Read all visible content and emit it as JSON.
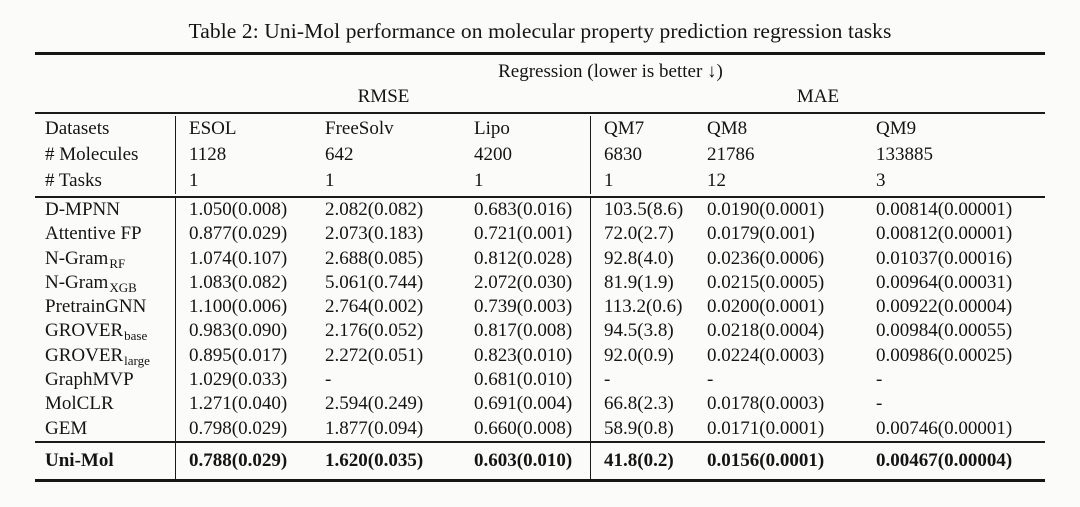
{
  "title": "Table 2: Uni-Mol performance on molecular property prediction regression tasks",
  "header": {
    "group_label": "Regression (lower is better ↓)",
    "metric_groups": [
      "RMSE",
      "MAE"
    ]
  },
  "datasets_header": {
    "row_labels": [
      "Datasets",
      "# Molecules",
      "# Tasks"
    ],
    "columns": [
      {
        "name": "ESOL",
        "molecules": "1128",
        "tasks": "1"
      },
      {
        "name": "FreeSolv",
        "molecules": "642",
        "tasks": "1"
      },
      {
        "name": "Lipo",
        "molecules": "4200",
        "tasks": "1"
      },
      {
        "name": "QM7",
        "molecules": "6830",
        "tasks": "1"
      },
      {
        "name": "QM8",
        "molecules": "21786",
        "tasks": "12"
      },
      {
        "name": "QM9",
        "molecules": "133885",
        "tasks": "3"
      }
    ]
  },
  "rows": [
    {
      "name": "D-MPNN",
      "sub": "",
      "values": [
        "1.050(0.008)",
        "2.082(0.082)",
        "0.683(0.016)",
        "103.5(8.6)",
        "0.0190(0.0001)",
        "0.00814(0.00001)"
      ]
    },
    {
      "name": "Attentive FP",
      "sub": "",
      "values": [
        "0.877(0.029)",
        "2.073(0.183)",
        "0.721(0.001)",
        "72.0(2.7)",
        "0.0179(0.001)",
        "0.00812(0.00001)"
      ]
    },
    {
      "name": "N-Gram",
      "sub": "RF",
      "values": [
        "1.074(0.107)",
        "2.688(0.085)",
        "0.812(0.028)",
        "92.8(4.0)",
        "0.0236(0.0006)",
        "0.01037(0.00016)"
      ]
    },
    {
      "name": "N-Gram",
      "sub": "XGB",
      "values": [
        "1.083(0.082)",
        "5.061(0.744)",
        "2.072(0.030)",
        "81.9(1.9)",
        "0.0215(0.0005)",
        "0.00964(0.00031)"
      ]
    },
    {
      "name": "PretrainGNN",
      "sub": "",
      "values": [
        "1.100(0.006)",
        "2.764(0.002)",
        "0.739(0.003)",
        "113.2(0.6)",
        "0.0200(0.0001)",
        "0.00922(0.00004)"
      ]
    },
    {
      "name": "GROVER",
      "sub": "base",
      "values": [
        "0.983(0.090)",
        "2.176(0.052)",
        "0.817(0.008)",
        "94.5(3.8)",
        "0.0218(0.0004)",
        "0.00984(0.00055)"
      ]
    },
    {
      "name": "GROVER",
      "sub": "large",
      "values": [
        "0.895(0.017)",
        "2.272(0.051)",
        "0.823(0.010)",
        "92.0(0.9)",
        "0.0224(0.0003)",
        "0.00986(0.00025)"
      ]
    },
    {
      "name": "GraphMVP",
      "sub": "",
      "values": [
        "1.029(0.033)",
        "-",
        "0.681(0.010)",
        "-",
        "-",
        "-"
      ]
    },
    {
      "name": "MolCLR",
      "sub": "",
      "values": [
        "1.271(0.040)",
        "2.594(0.249)",
        "0.691(0.004)",
        "66.8(2.3)",
        "0.0178(0.0003)",
        "-"
      ]
    },
    {
      "name": "GEM",
      "sub": "",
      "values": [
        "0.798(0.029)",
        "1.877(0.094)",
        "0.660(0.008)",
        "58.9(0.8)",
        "0.0171(0.0001)",
        "0.00746(0.00001)"
      ]
    }
  ],
  "highlight_row": {
    "name": "Uni-Mol",
    "values": [
      "0.788(0.029)",
      "1.620(0.035)",
      "0.603(0.010)",
      "41.8(0.2)",
      "0.0156(0.0001)",
      "0.00467(0.00004)"
    ]
  },
  "colors": {
    "text": "#141414",
    "rule": "#1a1a1a",
    "background": "#fbfbfa"
  }
}
